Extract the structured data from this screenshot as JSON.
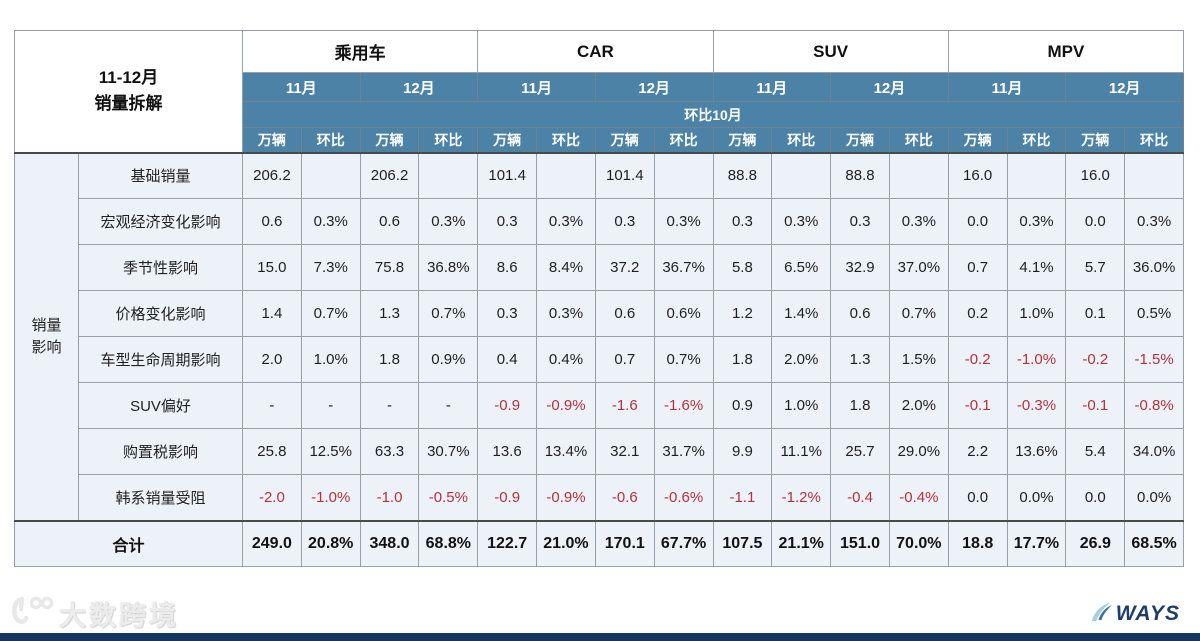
{
  "chart_data": {
    "type": "table",
    "title_lines": [
      "11-12月",
      "销量拆解"
    ],
    "column_groups": [
      "乘用车",
      "CAR",
      "SUV",
      "MPV"
    ],
    "month_labels": [
      "11月",
      "12月"
    ],
    "mom_banner": "环比10月",
    "unit_labels": [
      "万辆",
      "环比"
    ],
    "side_label_lines": [
      "销量",
      "影响"
    ],
    "rows": [
      {
        "label": "基础销量",
        "values": [
          "206.2",
          "",
          "206.2",
          "",
          "101.4",
          "",
          "101.4",
          "",
          "88.8",
          "",
          "88.8",
          "",
          "16.0",
          "",
          "16.0",
          ""
        ]
      },
      {
        "label": "宏观经济变化影响",
        "values": [
          "0.6",
          "0.3%",
          "0.6",
          "0.3%",
          "0.3",
          "0.3%",
          "0.3",
          "0.3%",
          "0.3",
          "0.3%",
          "0.3",
          "0.3%",
          "0.0",
          "0.3%",
          "0.0",
          "0.3%"
        ]
      },
      {
        "label": "季节性影响",
        "values": [
          "15.0",
          "7.3%",
          "75.8",
          "36.8%",
          "8.6",
          "8.4%",
          "37.2",
          "36.7%",
          "5.8",
          "6.5%",
          "32.9",
          "37.0%",
          "0.7",
          "4.1%",
          "5.7",
          "36.0%"
        ]
      },
      {
        "label": "价格变化影响",
        "values": [
          "1.4",
          "0.7%",
          "1.3",
          "0.7%",
          "0.3",
          "0.3%",
          "0.6",
          "0.6%",
          "1.2",
          "1.4%",
          "0.6",
          "0.7%",
          "0.2",
          "1.0%",
          "0.1",
          "0.5%"
        ]
      },
      {
        "label": "车型生命周期影响",
        "values": [
          "2.0",
          "1.0%",
          "1.8",
          "0.9%",
          "0.4",
          "0.4%",
          "0.7",
          "0.7%",
          "1.8",
          "2.0%",
          "1.3",
          "1.5%",
          "-0.2",
          "-1.0%",
          "-0.2",
          "-1.5%"
        ]
      },
      {
        "label": "SUV偏好",
        "values": [
          "-",
          "-",
          "-",
          "-",
          "-0.9",
          "-0.9%",
          "-1.6",
          "-1.6%",
          "0.9",
          "1.0%",
          "1.8",
          "2.0%",
          "-0.1",
          "-0.3%",
          "-0.1",
          "-0.8%"
        ]
      },
      {
        "label": "购置税影响",
        "values": [
          "25.8",
          "12.5%",
          "63.3",
          "30.7%",
          "13.6",
          "13.4%",
          "32.1",
          "31.7%",
          "9.9",
          "11.1%",
          "25.7",
          "29.0%",
          "2.2",
          "13.6%",
          "5.4",
          "34.0%"
        ]
      },
      {
        "label": "韩系销量受阻",
        "values": [
          "-2.0",
          "-1.0%",
          "-1.0",
          "-0.5%",
          "-0.9",
          "-0.9%",
          "-0.6",
          "-0.6%",
          "-1.1",
          "-1.2%",
          "-0.4",
          "-0.4%",
          "0.0",
          "0.0%",
          "0.0",
          "0.0%"
        ]
      }
    ],
    "total": {
      "label": "合计",
      "values": [
        "249.0",
        "20.8%",
        "348.0",
        "68.8%",
        "122.7",
        "21.0%",
        "170.1",
        "67.7%",
        "107.5",
        "21.1%",
        "151.0",
        "70.0%",
        "18.8",
        "17.7%",
        "26.9",
        "68.5%"
      ]
    }
  },
  "footer": {
    "watermark": "大数跨境",
    "brand": "WAYS"
  },
  "colors": {
    "header_blue": "#4d82a7",
    "cell_bg": "#edf1f8",
    "negative_red": "#b5323c",
    "bottom_bar": "#15375f",
    "brand_navy": "#1f3d6b",
    "watermark_gray": "#e2e2e2"
  }
}
